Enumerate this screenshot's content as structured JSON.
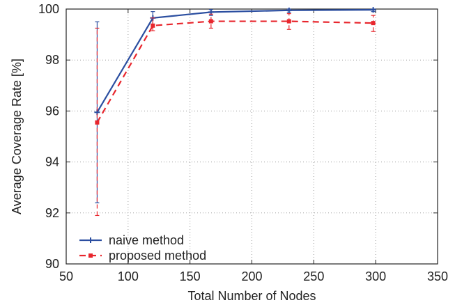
{
  "chart_data": {
    "type": "line",
    "title": "",
    "xlabel": "Total Number of Nodes",
    "ylabel": "Average Coverage Rate [%]",
    "xlim": [
      50,
      350
    ],
    "ylim": [
      90,
      100
    ],
    "xticks": [
      50,
      100,
      150,
      200,
      250,
      300,
      350
    ],
    "yticks": [
      90,
      92,
      94,
      96,
      98,
      100
    ],
    "grid": true,
    "legend_position": "bottom-left",
    "series": [
      {
        "name": "naive method",
        "color": "#2b4ea0",
        "line_style": "solid",
        "marker": "plus",
        "points": [
          {
            "x": 75,
            "y": 95.95,
            "low": 92.4,
            "high": 99.5
          },
          {
            "x": 120,
            "y": 99.65,
            "low": 99.4,
            "high": 99.9
          },
          {
            "x": 167,
            "y": 99.88,
            "low": 99.75,
            "high": 99.98
          },
          {
            "x": 230,
            "y": 99.95,
            "low": 99.88,
            "high": 100.0
          },
          {
            "x": 298,
            "y": 99.97,
            "low": 99.9,
            "high": 100.0
          }
        ]
      },
      {
        "name": "proposed method",
        "color": "#e8262d",
        "line_style": "dashed",
        "marker": "square",
        "points": [
          {
            "x": 75,
            "y": 95.55,
            "low": 91.9,
            "high": 99.25
          },
          {
            "x": 120,
            "y": 99.35,
            "low": 99.15,
            "high": 99.65
          },
          {
            "x": 167,
            "y": 99.52,
            "low": 99.25,
            "high": 99.8
          },
          {
            "x": 230,
            "y": 99.52,
            "low": 99.2,
            "high": 99.82
          },
          {
            "x": 298,
            "y": 99.45,
            "low": 99.12,
            "high": 99.75
          }
        ]
      }
    ]
  }
}
